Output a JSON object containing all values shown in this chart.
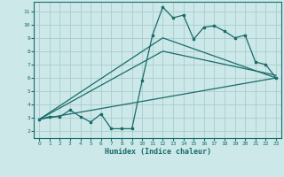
{
  "xlabel": "Humidex (Indice chaleur)",
  "bg_color": "#cce8e8",
  "grid_color": "#aacccc",
  "line_color": "#1a6b6b",
  "xlim": [
    -0.5,
    23.5
  ],
  "ylim": [
    1.5,
    11.7
  ],
  "xticks": [
    0,
    1,
    2,
    3,
    4,
    5,
    6,
    7,
    8,
    9,
    10,
    11,
    12,
    13,
    14,
    15,
    16,
    17,
    18,
    19,
    20,
    21,
    22,
    23
  ],
  "yticks": [
    2,
    3,
    4,
    5,
    6,
    7,
    8,
    9,
    10,
    11
  ],
  "series1_x": [
    0,
    1,
    2,
    3,
    4,
    5,
    6,
    7,
    8,
    9,
    10,
    11,
    12,
    13,
    14,
    15,
    16,
    17,
    18,
    19,
    20,
    21,
    22,
    23
  ],
  "series1_y": [
    2.9,
    3.1,
    3.1,
    3.6,
    3.1,
    2.7,
    3.3,
    2.2,
    2.2,
    2.2,
    5.8,
    9.2,
    11.3,
    10.5,
    10.7,
    8.9,
    9.8,
    9.9,
    9.5,
    9.0,
    9.2,
    7.2,
    7.0,
    6.0
  ],
  "series2_x": [
    0,
    12,
    23
  ],
  "series2_y": [
    2.9,
    9.0,
    6.0
  ],
  "series3_x": [
    0,
    12,
    23
  ],
  "series3_y": [
    2.9,
    8.0,
    6.2
  ],
  "series4_x": [
    0,
    23
  ],
  "series4_y": [
    2.9,
    6.0
  ]
}
